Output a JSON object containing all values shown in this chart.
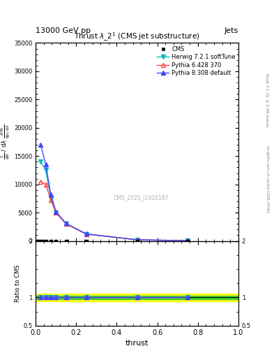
{
  "title_top": "13000 GeV pp",
  "title_right_top": "Jets",
  "plot_title": "Thrust $\\lambda$_2$^1$ (CMS jet substructure)",
  "watermark": "CMS_2021_I1920187",
  "xlabel": "thrust",
  "ylabel_main": "$\\frac{1}{\\mathregular{d}N}$ / $\\mathregular{d}\\lambda$ $\\frac{\\mathregular{d}^2N}{\\mathregular{d}p_T\\,\\mathregular{d}\\lambda}$",
  "ylabel_ratio": "Ratio to CMS",
  "right_label": "Rivet 3.1.10, ≥ 3.3M events",
  "right_label2": "mcplots.cern.ch [arXiv:1306.3436]",
  "xlim": [
    0.0,
    1.0
  ],
  "ylim_main": [
    0,
    35000
  ],
  "ylim_ratio": [
    0.5,
    2.0
  ],
  "yticks_main": [
    0,
    5000,
    10000,
    15000,
    20000,
    25000,
    30000,
    35000
  ],
  "ytick_labels_main": [
    "0",
    "5000",
    "10000",
    "15000",
    "20000",
    "25000",
    "30000",
    "35000"
  ],
  "yticks_ratio": [
    0.5,
    1.0,
    2.0
  ],
  "herwig_x": [
    0.025,
    0.05,
    0.075,
    0.1,
    0.15,
    0.25,
    0.5,
    0.75
  ],
  "herwig_y": [
    14000,
    12500,
    7500,
    5000,
    3000,
    1200,
    200,
    30
  ],
  "pythia6_x": [
    0.025,
    0.05,
    0.075,
    0.1,
    0.15,
    0.25,
    0.5,
    0.75
  ],
  "pythia6_y": [
    10500,
    10000,
    7200,
    5000,
    3000,
    1200,
    200,
    30
  ],
  "pythia8_x": [
    0.025,
    0.05,
    0.075,
    0.1,
    0.15,
    0.25,
    0.5,
    0.75
  ],
  "pythia8_y": [
    17000,
    13500,
    8200,
    5200,
    3100,
    1250,
    210,
    35
  ],
  "cms_x": [
    0.005,
    0.015,
    0.025,
    0.035,
    0.05,
    0.075,
    0.1,
    0.15,
    0.25,
    0.5,
    0.75
  ],
  "cms_y": [
    0,
    0,
    0,
    0,
    0,
    0,
    0,
    0,
    0,
    0,
    0
  ],
  "cms_color": "#000000",
  "herwig_color": "#00BBBB",
  "pythia6_color": "#FF4444",
  "pythia8_color": "#4444FF",
  "ratio_band_green_lo": 0.97,
  "ratio_band_green_hi": 1.03,
  "ratio_band_yellow_lo": 0.93,
  "ratio_band_yellow_hi": 1.07,
  "ratio_line_y": 1.0,
  "fig_width": 3.93,
  "fig_height": 5.12,
  "dpi": 100
}
